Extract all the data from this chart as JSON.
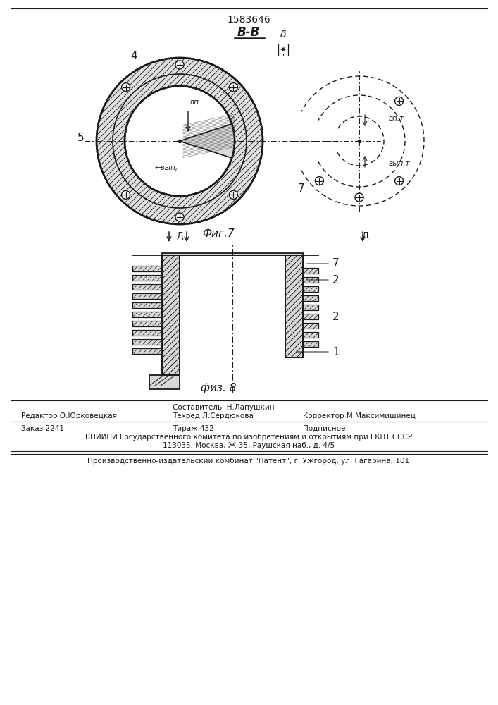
{
  "patent_number": "1583646",
  "section_label": "В-В",
  "fig1_caption": "Фиг.7",
  "fig2_caption": "физ. 8",
  "footer": {
    "col1_line1": "Составитель  Н.Лапушкин",
    "col0_line2": "Редактор О.Юрковецкая",
    "col1_line2": "Техред Л.Сердюкова",
    "col2_line2": "Корректор М.Максимишинец",
    "col0_line3": "Заказ 2241",
    "col1_line3": "Тираж 432",
    "col2_line3": "Подписное",
    "line4": "ВНИИПИ Государственного комитета по изобретениям и открытиям при ГКНТ СССР",
    "line5": "113035, Москва, Ж-35, Раушская наб., д. 4/5",
    "line6": "Производственно-издательский комбинат \"Патент\", г. Ужгород, ул. Гагарина, 101"
  },
  "bg_color": "#ffffff",
  "line_color": "#1a1a1a"
}
